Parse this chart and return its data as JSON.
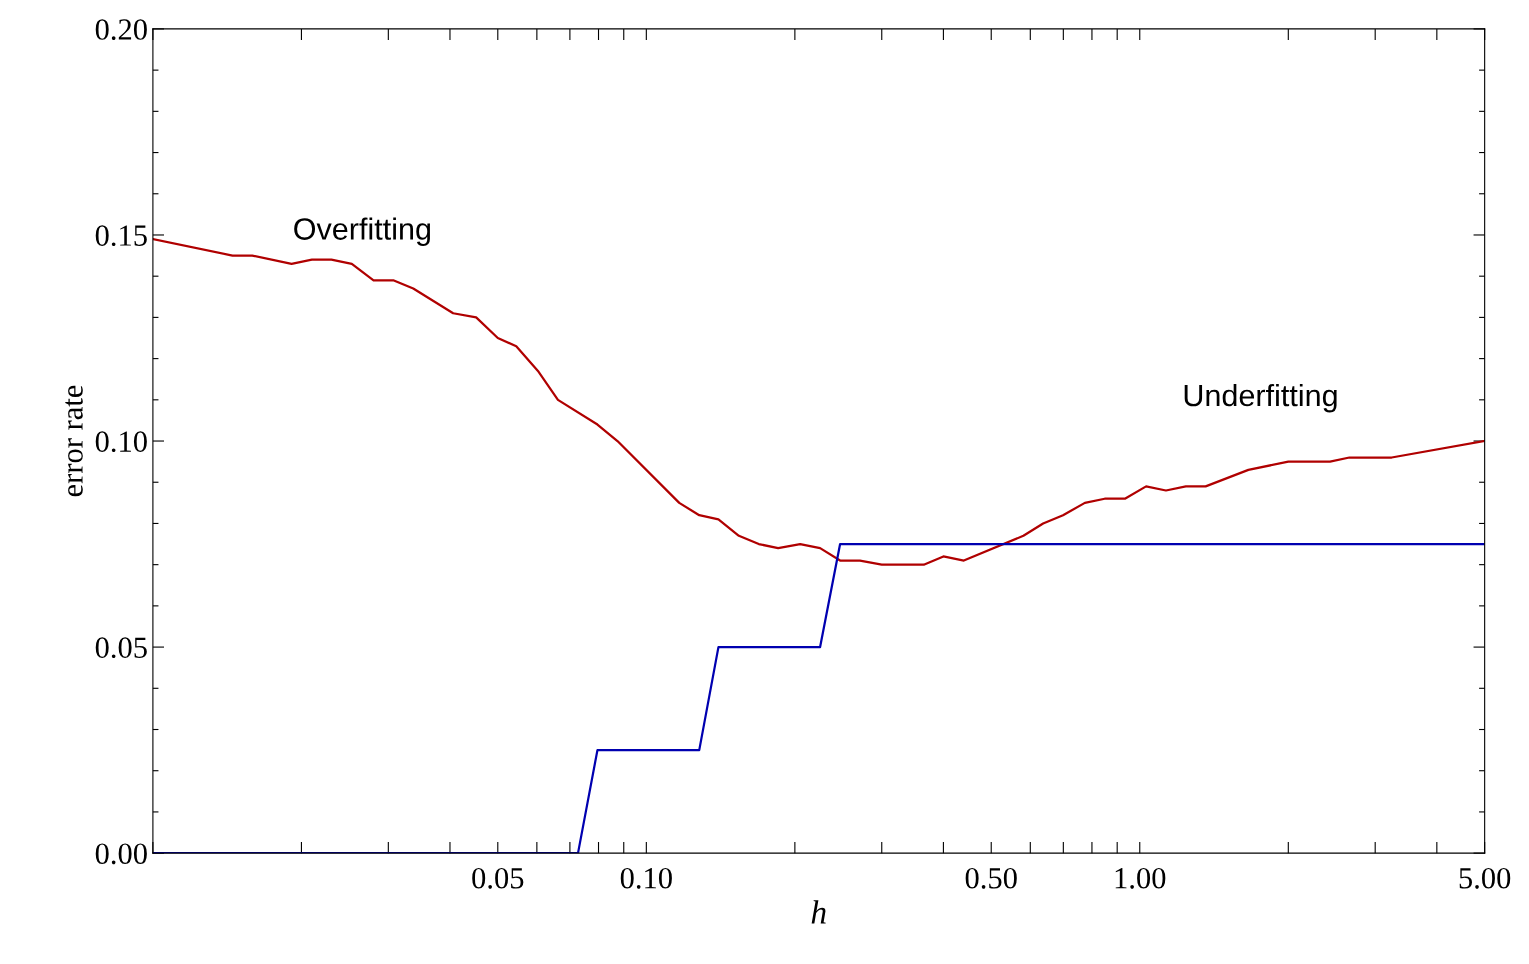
{
  "chart_data": {
    "type": "line",
    "xlabel": "h",
    "ylabel": "error rate",
    "log": "x",
    "xlim": [
      0.01,
      5
    ],
    "xticks": [
      {
        "value": 0.01,
        "label": null
      },
      {
        "value": 0.02,
        "label": null
      },
      {
        "value": 0.03,
        "label": null
      },
      {
        "value": 0.04,
        "label": null
      },
      {
        "value": 0.05,
        "label": "0.05"
      },
      {
        "value": 0.06,
        "label": null
      },
      {
        "value": 0.07,
        "label": null
      },
      {
        "value": 0.08,
        "label": null
      },
      {
        "value": 0.09,
        "label": null
      },
      {
        "value": 0.1,
        "label": "0.10"
      },
      {
        "value": 0.2,
        "label": null
      },
      {
        "value": 0.3,
        "label": null
      },
      {
        "value": 0.4,
        "label": null
      },
      {
        "value": 0.5,
        "label": "0.50"
      },
      {
        "value": 0.6,
        "label": null
      },
      {
        "value": 0.7,
        "label": null
      },
      {
        "value": 0.8,
        "label": null
      },
      {
        "value": 0.9,
        "label": null
      },
      {
        "value": 1,
        "label": "1.00"
      },
      {
        "value": 2,
        "label": null
      },
      {
        "value": 3,
        "label": null
      },
      {
        "value": 4,
        "label": null
      },
      {
        "value": 5,
        "label": "5.00"
      }
    ],
    "ylim": [
      0,
      0.2
    ],
    "yticks": [
      {
        "value": 0,
        "label": "0.00"
      },
      {
        "value": 0.01,
        "label": null
      },
      {
        "value": 0.02,
        "label": null
      },
      {
        "value": 0.03,
        "label": null
      },
      {
        "value": 0.04,
        "label": null
      },
      {
        "value": 0.05,
        "label": "0.05"
      },
      {
        "value": 0.06,
        "label": null
      },
      {
        "value": 0.07,
        "label": null
      },
      {
        "value": 0.08,
        "label": null
      },
      {
        "value": 0.09,
        "label": null
      },
      {
        "value": 0.1,
        "label": "0.10"
      },
      {
        "value": 0.11,
        "label": null
      },
      {
        "value": 0.12,
        "label": null
      },
      {
        "value": 0.13,
        "label": null
      },
      {
        "value": 0.14,
        "label": null
      },
      {
        "value": 0.15,
        "label": "0.15"
      },
      {
        "value": 0.16,
        "label": null
      },
      {
        "value": 0.17,
        "label": null
      },
      {
        "value": 0.18,
        "label": null
      },
      {
        "value": 0.19,
        "label": null
      },
      {
        "value": 0.2,
        "label": "0.20"
      }
    ],
    "series": [
      {
        "color": "#b00000",
        "x": [
          0.01,
          0.0145,
          0.0159,
          0.0191,
          0.021,
          0.023,
          0.0253,
          0.028,
          0.0307,
          0.0337,
          0.0406,
          0.0452,
          0.05,
          0.0545,
          0.0603,
          0.0662,
          0.0796,
          0.0874,
          0.1166,
          0.128,
          0.14,
          0.154,
          0.169,
          0.185,
          0.205,
          0.225,
          0.247,
          0.271,
          0.3,
          0.365,
          0.4,
          0.44,
          0.581,
          0.637,
          0.699,
          0.774,
          0.849,
          0.933,
          1.03,
          1.13,
          1.24,
          1.36,
          1.66,
          2.0,
          2.43,
          2.66,
          3.24,
          5.0
        ],
        "values": [
          0.149,
          0.145,
          0.145,
          0.143,
          0.144,
          0.144,
          0.143,
          0.139,
          0.139,
          0.137,
          0.131,
          0.13,
          0.125,
          0.123,
          0.117,
          0.11,
          0.104,
          0.1,
          0.085,
          0.082,
          0.081,
          0.077,
          0.075,
          0.074,
          0.075,
          0.074,
          0.071,
          0.071,
          0.07,
          0.07,
          0.072,
          0.071,
          0.077,
          0.08,
          0.082,
          0.085,
          0.086,
          0.086,
          0.089,
          0.088,
          0.089,
          0.089,
          0.093,
          0.095,
          0.095,
          0.096,
          0.096,
          0.1
        ]
      },
      {
        "color": "#0000b0",
        "x": [
          0.01,
          0.0727,
          0.0796,
          0.128,
          0.14,
          0.225,
          0.247,
          5.0
        ],
        "values": [
          0,
          0,
          0.025,
          0.025,
          0.05,
          0.05,
          0.075,
          0.075
        ]
      }
    ],
    "annotations": [
      "Overfitting",
      "Underfitting"
    ]
  }
}
